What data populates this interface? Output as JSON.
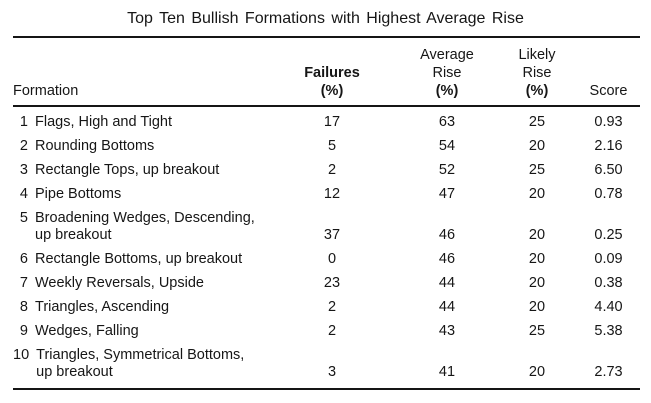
{
  "title": "Top Ten Bullish Formations with Highest Average Rise",
  "colors": {
    "background": "#ffffff",
    "text": "#161616",
    "rule": "#151515"
  },
  "table": {
    "headers": {
      "formation": "Formation",
      "failures": {
        "line1": "Failures",
        "line2": "(%)"
      },
      "average_rise": {
        "line1": "Average",
        "line2": "Rise",
        "line3": "(%)"
      },
      "likely_rise": {
        "line1": "Likely",
        "line2": "Rise",
        "line3": "(%)"
      },
      "score": "Score"
    },
    "rows": [
      {
        "num": "1",
        "name": "Flags, High and Tight",
        "name2": "",
        "failures": "17",
        "avg_rise": "63",
        "likely_rise": "25",
        "score": "0.93"
      },
      {
        "num": "2",
        "name": "Rounding Bottoms",
        "name2": "",
        "failures": "5",
        "avg_rise": "54",
        "likely_rise": "20",
        "score": "2.16"
      },
      {
        "num": "3",
        "name": "Rectangle Tops, up breakout",
        "name2": "",
        "failures": "2",
        "avg_rise": "52",
        "likely_rise": "25",
        "score": "6.50"
      },
      {
        "num": "4",
        "name": "Pipe Bottoms",
        "name2": "",
        "failures": "12",
        "avg_rise": "47",
        "likely_rise": "20",
        "score": "0.78"
      },
      {
        "num": "5",
        "name": "Broadening Wedges, Descending,",
        "name2": "up breakout",
        "failures": "37",
        "avg_rise": "46",
        "likely_rise": "20",
        "score": "0.25"
      },
      {
        "num": "6",
        "name": "Rectangle Bottoms, up breakout",
        "name2": "",
        "failures": "0",
        "avg_rise": "46",
        "likely_rise": "20",
        "score": "0.09"
      },
      {
        "num": "7",
        "name": "Weekly Reversals, Upside",
        "name2": "",
        "failures": "23",
        "avg_rise": "44",
        "likely_rise": "20",
        "score": "0.38"
      },
      {
        "num": "8",
        "name": "Triangles, Ascending",
        "name2": "",
        "failures": "2",
        "avg_rise": "44",
        "likely_rise": "20",
        "score": "4.40"
      },
      {
        "num": "9",
        "name": "Wedges, Falling",
        "name2": "",
        "failures": "2",
        "avg_rise": "43",
        "likely_rise": "25",
        "score": "5.38"
      },
      {
        "num": "10",
        "name": "Triangles, Symmetrical Bottoms,",
        "name2": "up breakout",
        "failures": "3",
        "avg_rise": "41",
        "likely_rise": "20",
        "score": "2.73"
      }
    ]
  }
}
